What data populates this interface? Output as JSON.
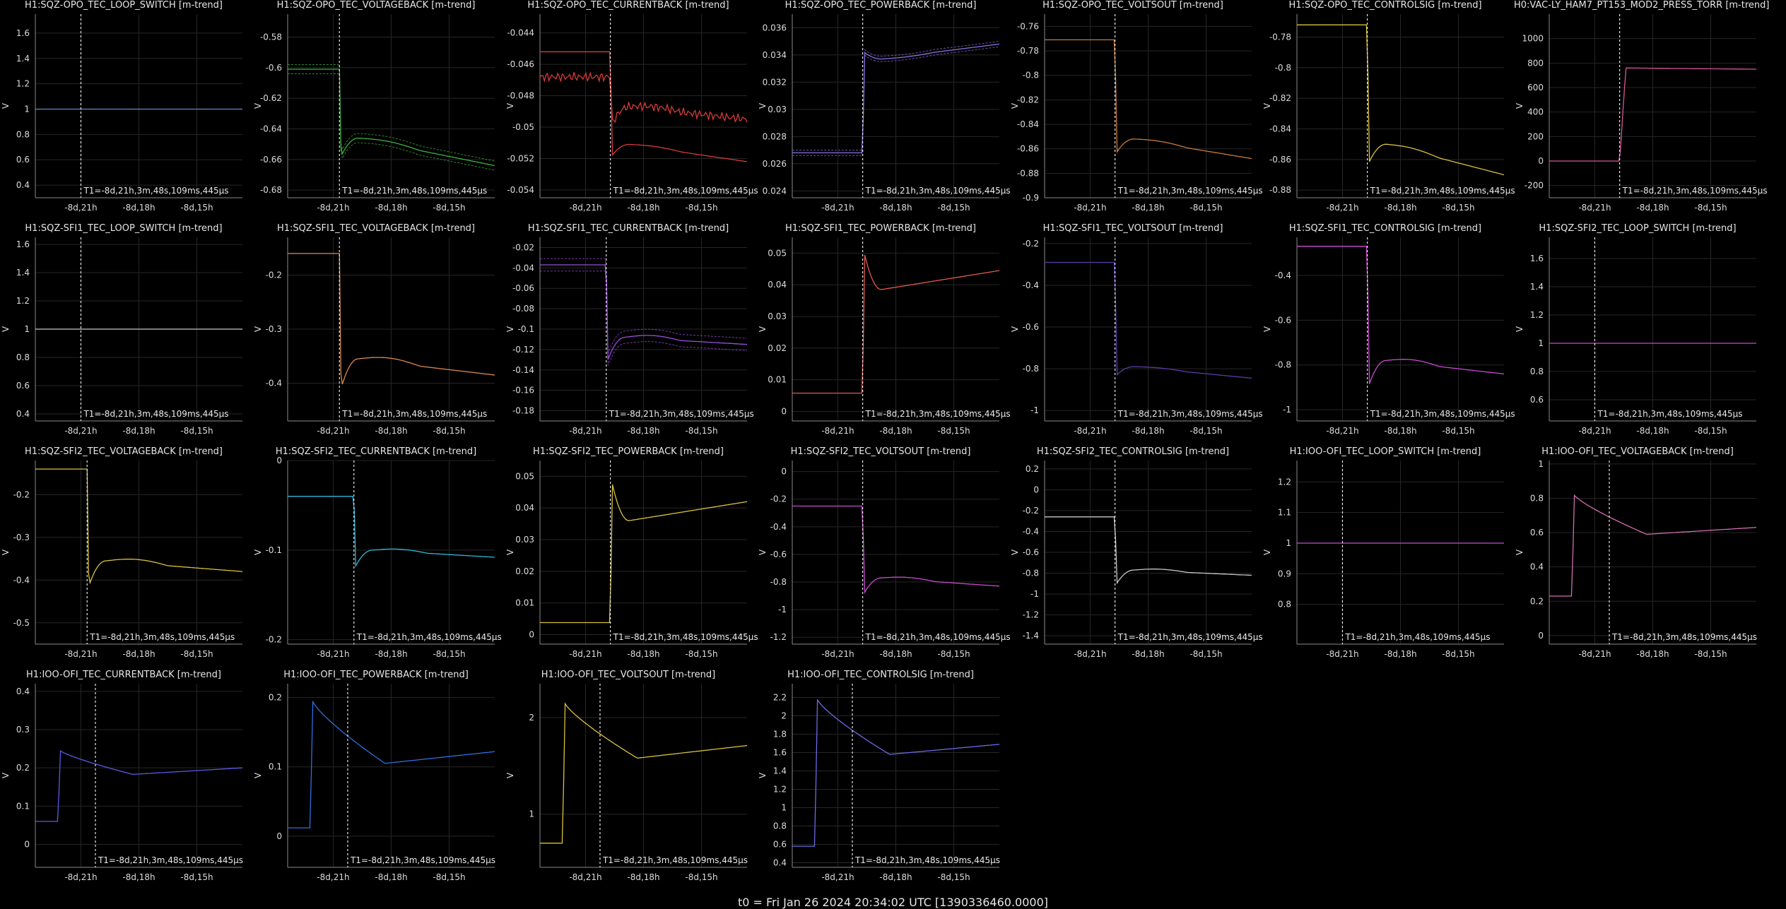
{
  "footer": "t0 = Fri Jan 26 2024 20:34:02 UTC [1390336460.0000]",
  "ylabel": "V",
  "cursor_label": "T1=-8d,21h,3m,48s,109ms,445μs",
  "chart_data": [
    {
      "type": "line",
      "title": "H1:SQZ-OPO_TEC_LOOP_SWITCH [m-trend]",
      "color": "#5b8fd0",
      "ylim": [
        0.3,
        1.75
      ],
      "yticks": [
        0.4,
        0.6,
        0.8,
        1,
        1.2,
        1.4,
        1.6
      ],
      "xticks": [
        "-8d,21h",
        "-8d,18h",
        "-8d,15h"
      ],
      "cursor": 0.22,
      "ymin": 0.3,
      "series": [
        {
          "kind": "flat",
          "pre": 1,
          "post": 1
        }
      ]
    },
    {
      "type": "line",
      "title": "H1:SQZ-OPO_TEC_VOLTAGEBACK [m-trend]",
      "color": "#3cb043",
      "ylim": [
        -0.685,
        -0.565
      ],
      "yticks": [
        -0.68,
        -0.66,
        -0.64,
        -0.62,
        -0.6,
        -0.58
      ],
      "xticks": [
        "-8d,21h",
        "-8d,18h",
        "-8d,15h"
      ],
      "cursor": 0.25,
      "band": 0.003,
      "series": [
        {
          "kind": "step",
          "pre": -0.601,
          "dip": -0.658,
          "mid": -0.646,
          "end": -0.664
        }
      ]
    },
    {
      "type": "line",
      "title": "H1:SQZ-OPO_TEC_CURRENTBACK [m-trend]",
      "color": "#d63a3a",
      "ylim": [
        -0.0545,
        -0.0428
      ],
      "yticks": [
        -0.054,
        -0.052,
        -0.05,
        -0.048,
        -0.046,
        -0.044
      ],
      "xticks": [
        "-8d,21h",
        "-8d,18h",
        "-8d,15h"
      ],
      "cursor": 0.34,
      "series": [
        {
          "kind": "step",
          "pre": -0.0452,
          "dip": -0.0518,
          "mid": -0.0511,
          "end": -0.0522
        },
        {
          "kind": "step",
          "pre": -0.0468,
          "dip": -0.0498,
          "mid": -0.0487,
          "end": -0.0495,
          "noise": 0.0003
        }
      ]
    },
    {
      "type": "line",
      "title": "H1:SQZ-OPO_TEC_POWERBACK [m-trend]",
      "color": "#8a6fe0",
      "ylim": [
        0.0235,
        0.037
      ],
      "yticks": [
        0.024,
        0.026,
        0.028,
        0.03,
        0.032,
        0.034,
        0.036
      ],
      "xticks": [
        "-8d,21h",
        "-8d,18h",
        "-8d,15h"
      ],
      "cursor": 0.34,
      "band": 0.0002,
      "series": [
        {
          "kind": "step",
          "pre": 0.0268,
          "dip": 0.0342,
          "mid": 0.0337,
          "end": 0.0348
        }
      ]
    },
    {
      "type": "line",
      "title": "H1:SQZ-OPO_TEC_VOLTSOUT [m-trend]",
      "color": "#c87a3c",
      "ylim": [
        -0.9,
        -0.75
      ],
      "yticks": [
        -0.9,
        -0.88,
        -0.86,
        -0.84,
        -0.82,
        -0.8,
        -0.78,
        -0.76
      ],
      "xticks": [
        "-8d,21h",
        "-8d,18h",
        "-8d,15h"
      ],
      "cursor": 0.34,
      "series": [
        {
          "kind": "step",
          "pre": -0.771,
          "dip": -0.863,
          "mid": -0.852,
          "end": -0.868
        }
      ]
    },
    {
      "type": "line",
      "title": "H1:SQZ-OPO_TEC_CONTROLSIG [m-trend]",
      "color": "#d9c23c",
      "ylim": [
        -0.885,
        -0.765
      ],
      "yticks": [
        -0.88,
        -0.86,
        -0.84,
        -0.82,
        -0.8,
        -0.78
      ],
      "xticks": [
        "-8d,21h",
        "-8d,18h",
        "-8d,15h"
      ],
      "cursor": 0.34,
      "series": [
        {
          "kind": "step",
          "pre": -0.772,
          "dip": -0.862,
          "mid": -0.85,
          "end": -0.87
        }
      ]
    },
    {
      "type": "line",
      "title": "H0:VAC-LY_HAM7_PT153_MOD2_PRESS_TORR [m-trend]",
      "color": "#d6569a",
      "ylim": [
        -300,
        1200
      ],
      "yticks": [
        -200,
        0,
        200,
        400,
        600,
        800,
        1000
      ],
      "xticks": [
        "-8d,21h",
        "-8d,18h",
        "-8d,15h"
      ],
      "cursor": 0.34,
      "series": [
        {
          "kind": "rise",
          "pre": 0,
          "post": 760,
          "end": 750
        }
      ]
    },
    {
      "type": "line",
      "title": "H1:SQZ-SFI1_TEC_LOOP_SWITCH [m-trend]",
      "color": "#c8c8c8",
      "ylim": [
        0.35,
        1.65
      ],
      "yticks": [
        0.4,
        0.6,
        0.8,
        1,
        1.2,
        1.4,
        1.6
      ],
      "xticks": [
        "-8d,21h",
        "-8d,18h",
        "-8d,15h"
      ],
      "cursor": 0.22,
      "series": [
        {
          "kind": "flat",
          "pre": 1,
          "post": 1
        }
      ]
    },
    {
      "type": "line",
      "title": "H1:SQZ-SFI1_TEC_VOLTAGEBACK [m-trend]",
      "color": "#d98a54",
      "ylim": [
        -0.47,
        -0.13
      ],
      "yticks": [
        -0.4,
        -0.3,
        -0.2
      ],
      "xticks": [
        "-8d,21h",
        "-8d,18h",
        "-8d,15h"
      ],
      "cursor": 0.25,
      "series": [
        {
          "kind": "step",
          "pre": -0.16,
          "dip": -0.41,
          "mid": -0.355,
          "end": -0.385
        }
      ]
    },
    {
      "type": "line",
      "title": "H1:SQZ-SFI1_TEC_CURRENTBACK [m-trend]",
      "color": "#9a4fe0",
      "ylim": [
        -0.19,
        -0.01
      ],
      "yticks": [
        -0.18,
        -0.16,
        -0.14,
        -0.12,
        -0.1,
        -0.08,
        -0.06,
        -0.04,
        -0.02
      ],
      "xticks": [
        "-8d,21h",
        "-8d,18h",
        "-8d,15h"
      ],
      "cursor": 0.32,
      "band": 0.006,
      "series": [
        {
          "kind": "step",
          "pre": -0.037,
          "dip": -0.13,
          "mid": -0.108,
          "end": -0.115
        }
      ]
    },
    {
      "type": "line",
      "title": "H1:SQZ-SFI1_TEC_POWERBACK [m-trend]",
      "color": "#e2594f",
      "ylim": [
        -0.003,
        0.055
      ],
      "yticks": [
        0,
        0.01,
        0.02,
        0.03,
        0.04,
        0.05
      ],
      "xticks": [
        "-8d,21h",
        "-8d,18h",
        "-8d,15h"
      ],
      "cursor": 0.34,
      "series": [
        {
          "kind": "step",
          "pre": 0.0058,
          "dip": 0.05,
          "mid": 0.0385,
          "end": 0.0445,
          "peak": true
        }
      ]
    },
    {
      "type": "line",
      "title": "H1:SQZ-SFI1_TEC_VOLTSOUT [m-trend]",
      "color": "#5a3aa8",
      "ylim": [
        -1.05,
        -0.17
      ],
      "yticks": [
        -1,
        -0.8,
        -0.6,
        -0.4,
        -0.2
      ],
      "xticks": [
        "-8d,21h",
        "-8d,18h",
        "-8d,15h"
      ],
      "cursor": 0.34,
      "series": [
        {
          "kind": "step",
          "pre": -0.29,
          "dip": -0.83,
          "mid": -0.79,
          "end": -0.845
        }
      ]
    },
    {
      "type": "line",
      "title": "H1:SQZ-SFI1_TEC_CONTROLSIG [m-trend]",
      "color": "#c94ad1",
      "ylim": [
        -1.05,
        -0.23
      ],
      "yticks": [
        -1,
        -0.8,
        -0.6,
        -0.4
      ],
      "xticks": [
        "-8d,21h",
        "-8d,18h",
        "-8d,15h"
      ],
      "cursor": 0.34,
      "series": [
        {
          "kind": "step",
          "pre": -0.27,
          "dip": -0.89,
          "mid": -0.78,
          "end": -0.84
        }
      ]
    },
    {
      "type": "line",
      "title": "H1:SQZ-SFI2_TEC_LOOP_SWITCH [m-trend]",
      "color": "#c94ad1",
      "ylim": [
        0.45,
        1.75
      ],
      "yticks": [
        0.6,
        0.8,
        1,
        1.2,
        1.4,
        1.6
      ],
      "xticks": [
        "-8d,21h",
        "-8d,18h",
        "-8d,15h"
      ],
      "cursor": 0.22,
      "series": [
        {
          "kind": "flat",
          "pre": 1,
          "post": 1
        }
      ]
    },
    {
      "type": "line",
      "title": "H1:SQZ-SFI2_TEC_VOLTAGEBACK [m-trend]",
      "color": "#d9c23c",
      "ylim": [
        -0.55,
        -0.12
      ],
      "yticks": [
        -0.5,
        -0.4,
        -0.3,
        -0.2
      ],
      "xticks": [
        "-8d,21h",
        "-8d,18h",
        "-8d,15h"
      ],
      "cursor": 0.25,
      "series": [
        {
          "kind": "step",
          "pre": -0.14,
          "dip": -0.415,
          "mid": -0.355,
          "end": -0.38
        }
      ]
    },
    {
      "type": "line",
      "title": "H1:SQZ-SFI2_TEC_CURRENTBACK [m-trend]",
      "color": "#2fb8d6",
      "ylim": [
        -0.205,
        0.0
      ],
      "yticks": [
        -0.2,
        -0.1,
        0
      ],
      "xticks": [
        "-8d,21h",
        "-8d,18h",
        "-8d,15h"
      ],
      "cursor": 0.32,
      "series": [
        {
          "kind": "step",
          "pre": -0.04,
          "dip": -0.118,
          "mid": -0.1,
          "end": -0.108
        }
      ]
    },
    {
      "type": "line",
      "title": "H1:SQZ-SFI2_TEC_POWERBACK [m-trend]",
      "color": "#d9c23c",
      "ylim": [
        -0.003,
        0.055
      ],
      "yticks": [
        0,
        0.01,
        0.02,
        0.03,
        0.04,
        0.05
      ],
      "xticks": [
        "-8d,21h",
        "-8d,18h",
        "-8d,15h"
      ],
      "cursor": 0.34,
      "series": [
        {
          "kind": "step",
          "pre": 0.0038,
          "dip": 0.048,
          "mid": 0.036,
          "end": 0.042,
          "peak": true
        }
      ]
    },
    {
      "type": "line",
      "title": "H1:SQZ-SFI2_TEC_VOLTSOUT [m-trend]",
      "color": "#c94ad1",
      "ylim": [
        -1.25,
        0.08
      ],
      "yticks": [
        -1.2,
        -1,
        -0.8,
        -0.6,
        -0.4,
        -0.2,
        0
      ],
      "xticks": [
        "-8d,21h",
        "-8d,18h",
        "-8d,15h"
      ],
      "cursor": 0.34,
      "series": [
        {
          "kind": "step",
          "pre": -0.25,
          "dip": -0.88,
          "mid": -0.77,
          "end": -0.83
        }
      ]
    },
    {
      "type": "line",
      "title": "H1:SQZ-SFI2_TEC_CONTROLSIG [m-trend]",
      "color": "#c8c8c8",
      "ylim": [
        -1.48,
        0.28
      ],
      "yticks": [
        -1.4,
        -1.2,
        -1,
        -0.8,
        -0.6,
        -0.4,
        -0.2,
        0,
        0.2
      ],
      "xticks": [
        "-8d,21h",
        "-8d,18h",
        "-8d,15h"
      ],
      "cursor": 0.34,
      "series": [
        {
          "kind": "step",
          "pre": -0.26,
          "dip": -0.9,
          "mid": -0.77,
          "end": -0.82
        }
      ]
    },
    {
      "type": "line",
      "title": "H1:IOO-OFI_TEC_LOOP_SWITCH [m-trend]",
      "color": "#c94ad1",
      "ylim": [
        0.67,
        1.27
      ],
      "yticks": [
        0.8,
        0.9,
        1.0,
        1.1,
        1.2
      ],
      "xticks": [
        "-8d,21h",
        "-8d,18h",
        "-8d,15h"
      ],
      "cursor": 0.22,
      "series": [
        {
          "kind": "flat",
          "pre": 1,
          "post": 1
        }
      ]
    },
    {
      "type": "line",
      "title": "H1:IOO-OFI_TEC_VOLTAGEBACK [m-trend]",
      "color": "#d26db0",
      "ylim": [
        -0.05,
        1.02
      ],
      "yticks": [
        0,
        0.2,
        0.4,
        0.6,
        0.8,
        1
      ],
      "xticks": [
        "-8d,21h",
        "-8d,18h",
        "-8d,15h"
      ],
      "cursor": 0.29,
      "series": [
        {
          "kind": "early",
          "pre": 0.23,
          "peak": 0.82,
          "trough": 0.59,
          "end": 0.63
        }
      ]
    },
    {
      "type": "line",
      "title": "H1:IOO-OFI_TEC_CURRENTBACK [m-trend]",
      "color": "#5a5ae6",
      "ylim": [
        -0.06,
        0.42
      ],
      "yticks": [
        0,
        0.1,
        0.2,
        0.3,
        0.4
      ],
      "xticks": [
        "-8d,21h",
        "-8d,18h",
        "-8d,15h"
      ],
      "cursor": 0.29,
      "series": [
        {
          "kind": "early",
          "pre": 0.06,
          "peak": 0.245,
          "trough": 0.183,
          "end": 0.2
        }
      ]
    },
    {
      "type": "line",
      "title": "H1:IOO-OFI_TEC_POWERBACK [m-trend]",
      "color": "#2f6fe0",
      "ylim": [
        -0.045,
        0.22
      ],
      "yticks": [
        0,
        0.1,
        0.2
      ],
      "xticks": [
        "-8d,21h",
        "-8d,18h",
        "-8d,15h"
      ],
      "cursor": 0.29,
      "series": [
        {
          "kind": "early",
          "pre": 0.012,
          "peak": 0.195,
          "trough": 0.105,
          "end": 0.122
        }
      ]
    },
    {
      "type": "line",
      "title": "H1:IOO-OFI_TEC_VOLTSOUT [m-trend]",
      "color": "#d9c23c",
      "ylim": [
        0.45,
        2.35
      ],
      "yticks": [
        1,
        2
      ],
      "xticks": [
        "-8d,21h",
        "-8d,18h",
        "-8d,15h"
      ],
      "cursor": 0.29,
      "series": [
        {
          "kind": "early",
          "pre": 0.7,
          "peak": 2.15,
          "trough": 1.58,
          "end": 1.71
        }
      ]
    },
    {
      "type": "line",
      "title": "H1:IOO-OFI_TEC_CONTROLSIG [m-trend]",
      "color": "#6a6ae8",
      "ylim": [
        0.35,
        2.35
      ],
      "yticks": [
        0.4,
        0.6,
        0.8,
        1,
        1.2,
        1.4,
        1.6,
        1.8,
        2,
        2.2
      ],
      "xticks": [
        "-8d,21h",
        "-8d,18h",
        "-8d,15h"
      ],
      "cursor": 0.29,
      "series": [
        {
          "kind": "early",
          "pre": 0.58,
          "peak": 2.18,
          "trough": 1.58,
          "end": 1.69
        }
      ]
    }
  ]
}
